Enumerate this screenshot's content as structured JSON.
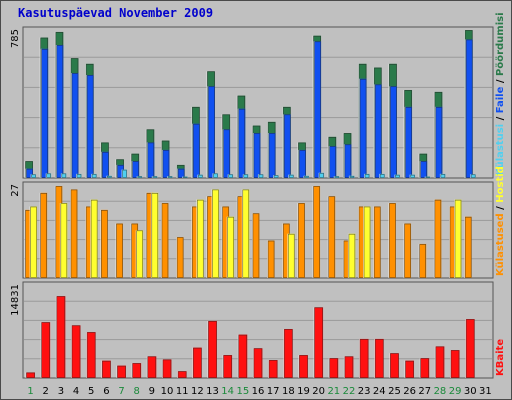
{
  "title": "Kasutuspäevad November 2009",
  "colors": {
    "page_views": "#2a7a4a",
    "hits": "#1050f0",
    "files": "#50d0f0",
    "visits": "#ff9000",
    "sites": "#ffff30",
    "kbytes": "#ff1010",
    "weekend_day_label": "#1a8a3a",
    "weekday_label": "#000000"
  },
  "chart_data": [
    {
      "type": "bar",
      "panel": "top",
      "ylabel": "785",
      "ymax": 785,
      "x": [
        "1",
        "2",
        "3",
        "4",
        "5",
        "6",
        "7",
        "8",
        "9",
        "10",
        "11",
        "12",
        "13",
        "14",
        "15",
        "16",
        "17",
        "18",
        "19",
        "20",
        "21",
        "22",
        "23",
        "24",
        "25",
        "26",
        "27",
        "28",
        "29",
        "30",
        "31"
      ],
      "series": [
        {
          "name": "Pöördumisi",
          "color": "#2a7a4a",
          "values": [
            90,
            750,
            780,
            640,
            610,
            190,
            100,
            130,
            260,
            200,
            70,
            380,
            570,
            340,
            440,
            280,
            300,
            380,
            190,
            760,
            220,
            240,
            610,
            590,
            610,
            470,
            130,
            460,
            0,
            790,
            0
          ]
        },
        {
          "name": "Faile",
          "color": "#1050f0",
          "values": [
            50,
            690,
            710,
            560,
            550,
            140,
            70,
            90,
            190,
            150,
            50,
            290,
            490,
            260,
            370,
            240,
            240,
            340,
            150,
            730,
            170,
            180,
            530,
            500,
            490,
            380,
            90,
            380,
            0,
            740,
            0
          ]
        },
        {
          "name": "Külastusi",
          "color": "#50d0f0",
          "values": [
            20,
            25,
            25,
            22,
            22,
            12,
            45,
            10,
            10,
            10,
            8,
            18,
            25,
            20,
            20,
            20,
            15,
            18,
            12,
            28,
            10,
            12,
            22,
            22,
            18,
            18,
            8,
            22,
            0,
            20,
            0
          ]
        }
      ],
      "legend": [
        "Pöördumisi",
        "Faile",
        "Külastusi"
      ]
    },
    {
      "type": "bar",
      "panel": "middle",
      "ylabel": "27",
      "ymax": 27,
      "x": [
        "1",
        "2",
        "3",
        "4",
        "5",
        "6",
        "7",
        "8",
        "9",
        "10",
        "11",
        "12",
        "13",
        "14",
        "15",
        "16",
        "17",
        "18",
        "19",
        "20",
        "21",
        "22",
        "23",
        "24",
        "25",
        "26",
        "27",
        "28",
        "29",
        "30",
        "31"
      ],
      "series": [
        {
          "name": "Külastused",
          "color": "#ff9000",
          "values": [
            20,
            25,
            27,
            26,
            21,
            20,
            16,
            16,
            25,
            22,
            12,
            21,
            24,
            21,
            24,
            19,
            11,
            16,
            22,
            27,
            24,
            11,
            21,
            21,
            22,
            16,
            10,
            23,
            21,
            18,
            0
          ]
        },
        {
          "name": "Hostid",
          "color": "#ffff30",
          "values": [
            21,
            0,
            22,
            0,
            23,
            0,
            0,
            14,
            25,
            0,
            0,
            23,
            26,
            18,
            26,
            0,
            0,
            13,
            0,
            0,
            0,
            13,
            21,
            0,
            0,
            0,
            0,
            0,
            23,
            0,
            0
          ]
        }
      ],
      "legend": [
        "Hostid",
        "Külastused"
      ]
    },
    {
      "type": "bar",
      "panel": "bottom",
      "ylabel": "14831",
      "ymax": 14831,
      "x": [
        "1",
        "2",
        "3",
        "4",
        "5",
        "6",
        "7",
        "8",
        "9",
        "10",
        "11",
        "12",
        "13",
        "14",
        "15",
        "16",
        "17",
        "18",
        "19",
        "20",
        "21",
        "22",
        "23",
        "24",
        "25",
        "26",
        "27",
        "28",
        "29",
        "30",
        "31"
      ],
      "series": [
        {
          "name": "KBaite",
          "color": "#ff1010",
          "values": [
            900,
            9000,
            13200,
            8500,
            7400,
            2800,
            2000,
            2400,
            3500,
            3000,
            1100,
            4900,
            9200,
            3700,
            7000,
            4800,
            2900,
            7900,
            3700,
            11400,
            3200,
            3500,
            6300,
            6300,
            4000,
            2800,
            3200,
            5100,
            4500,
            9500,
            0
          ]
        }
      ],
      "legend": [
        "KBaite"
      ]
    }
  ],
  "legend_text": {
    "top_sep1": " / ",
    "top_sep2": " / ",
    "mid_sep": " / "
  }
}
